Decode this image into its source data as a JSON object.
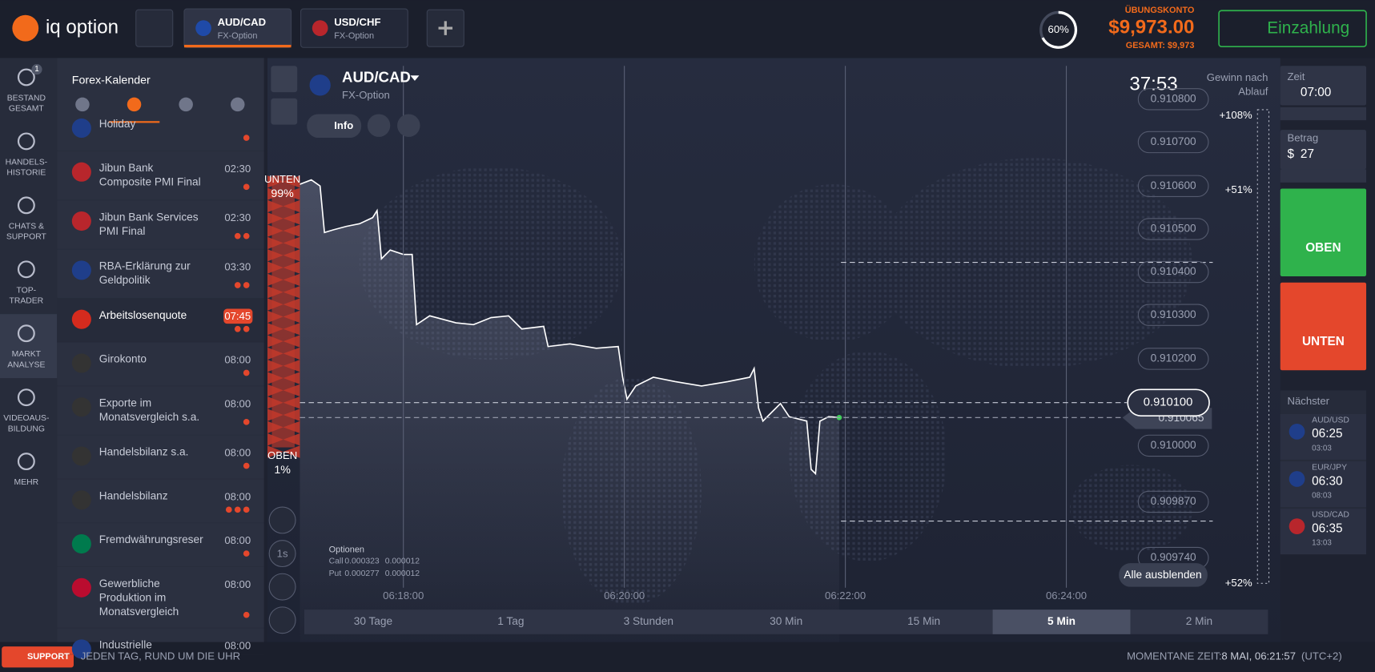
{
  "header": {
    "logo": "iq option",
    "tabs": [
      {
        "pair": "AUD/CAD",
        "type": "FX-Option"
      },
      {
        "pair": "USD/CHF",
        "type": "FX-Option"
      }
    ],
    "progress": "60%",
    "account_label": "ÜBUNGSKONTO",
    "balance": "$9,973.00",
    "total": "GESAMT: $9,973",
    "deposit": "Einzahlung"
  },
  "sidebar": [
    {
      "lines": [
        "BESTAND",
        "GESAMT"
      ],
      "badge": "1"
    },
    {
      "lines": [
        "HANDELS-",
        "HISTORIE"
      ]
    },
    {
      "lines": [
        "CHATS &",
        "SUPPORT"
      ]
    },
    {
      "lines": [
        "TOP-",
        "TRADER"
      ]
    },
    {
      "lines": [
        "MARKT",
        "ANALYSE"
      ]
    },
    {
      "lines": [
        "VIDEOAUS-",
        "BILDUNG"
      ]
    },
    {
      "lines": [
        "MEHR"
      ]
    }
  ],
  "calendar": {
    "title": "Forex-Kalender",
    "events": [
      {
        "name": [
          "Holiday"
        ],
        "importance": 1
      },
      {
        "name": [
          "Jibun Bank",
          "Composite PMI Final"
        ],
        "time": "02:30",
        "importance": 1
      },
      {
        "name": [
          "Jibun Bank Services",
          "PMI Final"
        ],
        "time": "02:30",
        "importance": 2
      },
      {
        "name": [
          "RBA-Erklärung zur",
          "Geldpolitik"
        ],
        "time": "03:30",
        "importance": 2
      },
      {
        "name": [
          "Arbeitslosenquote"
        ],
        "time": "07:45",
        "importance": 2
      },
      {
        "name": [
          "Girokonto"
        ],
        "time": "08:00",
        "importance": 1
      },
      {
        "name": [
          "Exporte im",
          "Monatsvergleich s.a."
        ],
        "time": "08:00",
        "importance": 1
      },
      {
        "name": [
          "Handelsbilanz s.a."
        ],
        "time": "08:00",
        "importance": 1
      },
      {
        "name": [
          "Handelsbilanz"
        ],
        "time": "08:00",
        "importance": 3
      },
      {
        "name": [
          "Fremdwährungsreser"
        ],
        "time": "08:00",
        "importance": 1
      },
      {
        "name": [
          "Gewerbliche",
          "Produktion im",
          "Monatsvergleich"
        ],
        "time": "08:00",
        "importance": 1
      },
      {
        "name": [
          "Industrielle"
        ],
        "time": "08:00"
      }
    ]
  },
  "chart": {
    "asset": "AUD/CAD",
    "type": "FX-Option",
    "info": "Info",
    "timer": "37:53",
    "profit_label": [
      "Gewinn nach",
      "Ablauf"
    ],
    "down_label": "UNTEN",
    "down_pct": "99%",
    "up_label": "OBEN",
    "up_pct": "1%",
    "price_labels": [
      "0.910800",
      "0.910700",
      "0.910600",
      "0.910500",
      "0.910400",
      "0.910300",
      "0.910200",
      "0.910000",
      "0.909870",
      "0.909740"
    ],
    "current_price": "0.910100",
    "strike_price": "0.910065",
    "payouts": [
      "+108%",
      "+51%",
      "+52%"
    ],
    "times": [
      "06:18:00",
      "06:20:00",
      "06:22:00",
      "06:24:00"
    ],
    "interval": "1s",
    "options_title": "Optionen",
    "options": [
      [
        "Call",
        "0.000323",
        "0.000012"
      ],
      [
        "Put",
        "0.000277",
        "0.000012"
      ]
    ],
    "hide_all": "Alle ausblenden",
    "timeframes": [
      "30 Tage",
      "1 Tag",
      "3 Stunden",
      "30 Min",
      "15 Min",
      "5 Min",
      "2 Min"
    ],
    "active_timeframe": 5
  },
  "trade_panel": {
    "time_label": "Zeit",
    "time": "07:00",
    "amount_label": "Betrag",
    "currency": "$",
    "amount": "27",
    "up": "OBEN",
    "down": "UNTEN",
    "next_label": "Nächster",
    "next": [
      {
        "pair": "AUD/USD",
        "time": "06:25",
        "countdown": "03:03"
      },
      {
        "pair": "EUR/JPY",
        "time": "06:30",
        "countdown": "08:03"
      },
      {
        "pair": "USD/CAD",
        "time": "06:35",
        "countdown": "13:03"
      }
    ]
  },
  "footer": {
    "support": "SUPPORT",
    "slogan": "JEDEN TAG, RUND UM DIE UHR",
    "clock_label": "MOMENTANE ZEIT:",
    "clock": "8 MAI, 06:21:57",
    "timezone": "(UTC+2)"
  }
}
